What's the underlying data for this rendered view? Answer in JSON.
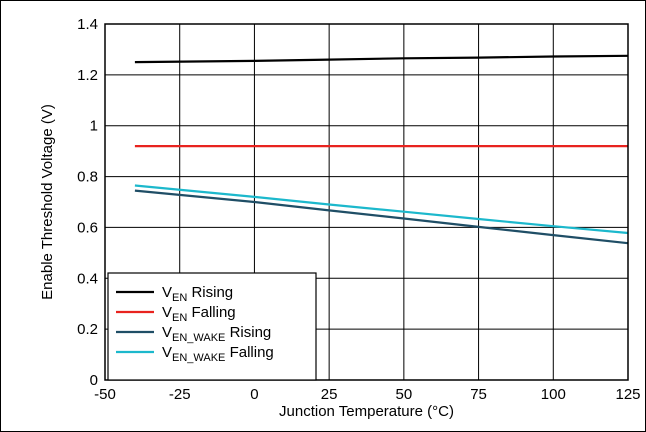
{
  "chart_data": {
    "type": "line",
    "xlabel": "Junction Temperature (°C)",
    "ylabel": "Enable Threshold Voltage (V)",
    "xlim": [
      -50,
      125
    ],
    "ylim": [
      0,
      1.4
    ],
    "x_ticks": [
      "-50",
      "-25",
      "0",
      "25",
      "50",
      "75",
      "100",
      "125"
    ],
    "y_ticks": [
      "0",
      "0.2",
      "0.4",
      "0.6",
      "0.8",
      "1",
      "1.2",
      "1.4"
    ],
    "grid": true,
    "legend_position": "bottom-left",
    "series": [
      {
        "name": "VEN Rising",
        "legend_main": "V",
        "legend_sub": "EN",
        "legend_suffix": " Rising",
        "color": "#000000",
        "x": [
          -40,
          0,
          25,
          50,
          75,
          100,
          125
        ],
        "y": [
          1.25,
          1.255,
          1.26,
          1.265,
          1.268,
          1.272,
          1.275
        ]
      },
      {
        "name": "VEN Falling",
        "legend_main": "V",
        "legend_sub": "EN",
        "legend_suffix": " Falling",
        "color": "#e8231f",
        "x": [
          -40,
          0,
          25,
          50,
          75,
          100,
          125
        ],
        "y": [
          0.92,
          0.92,
          0.92,
          0.92,
          0.92,
          0.92,
          0.92
        ]
      },
      {
        "name": "VEN_WAKE Rising",
        "legend_main": "V",
        "legend_sub": "EN_WAKE",
        "legend_suffix": " Rising",
        "color": "#1f4e66",
        "x": [
          -40,
          0,
          25,
          50,
          75,
          100,
          125
        ],
        "y": [
          0.745,
          0.7,
          0.667,
          0.635,
          0.602,
          0.57,
          0.538
        ]
      },
      {
        "name": "VEN_WAKE Falling",
        "legend_main": "V",
        "legend_sub": "EN_WAKE",
        "legend_suffix": " Falling",
        "color": "#1cb8cc",
        "x": [
          -40,
          0,
          25,
          50,
          75,
          100,
          125
        ],
        "y": [
          0.765,
          0.72,
          0.69,
          0.662,
          0.633,
          0.605,
          0.578
        ]
      }
    ]
  }
}
